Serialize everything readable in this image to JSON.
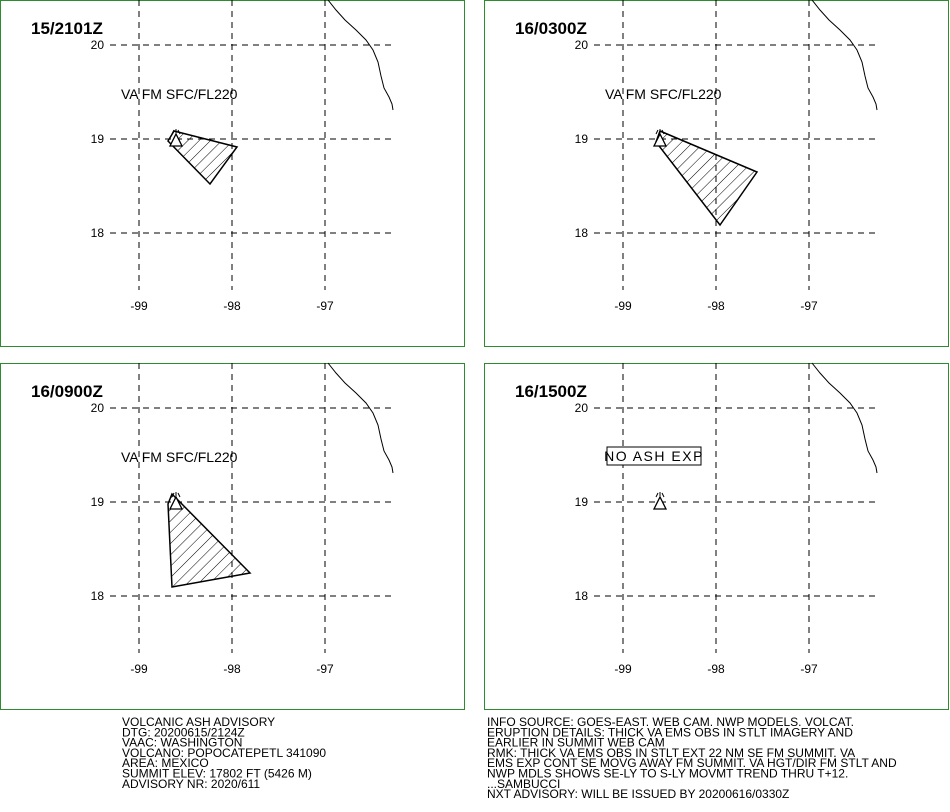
{
  "panels": [
    {
      "time": "15/2101Z",
      "label": "VA FM SFC/FL220"
    },
    {
      "time": "16/0300Z",
      "label": "VA FM SFC/FL220"
    },
    {
      "time": "16/0900Z",
      "label": "VA FM SFC/FL220"
    },
    {
      "time": "16/1500Z",
      "label": "NO ASH EXP"
    }
  ],
  "grid": {
    "lat": [
      20,
      19,
      18
    ],
    "lon": [
      -99,
      -98,
      -97
    ]
  },
  "advisory_left": [
    "VOLCANIC ASH ADVISORY",
    "DTG: 20200615/2124Z",
    "VAAC: WASHINGTON",
    "VOLCANO: POPOCATEPETL 341090",
    "AREA: MEXICO",
    "SUMMIT ELEV: 17802 FT (5426 M)",
    "ADVISORY NR: 2020/611"
  ],
  "advisory_right": [
    "INFO SOURCE: GOES-EAST. WEB CAM. NWP MODELS. VOLCAT.",
    "ERUPTION DETAILS: THICK VA EMS OBS IN STLT IMAGERY AND",
    "EARLIER IN SUMMIT WEB CAM",
    "RMK: THICK VA EMS OBS IN STLT EXT 22 NM SE FM SUMMIT. VA",
    "EMS EXP CONT SE MOVG AWAY FM SUMMIT. VA HGT/DIR FM STLT AND",
    "NWP MDLS SHOWS SE-LY TO S-LY MOVMT TREND THRU T+12.",
    "...SAMBUCCI",
    "NXT ADVISORY: WILL BE ISSUED BY 20200616/0330Z"
  ]
}
